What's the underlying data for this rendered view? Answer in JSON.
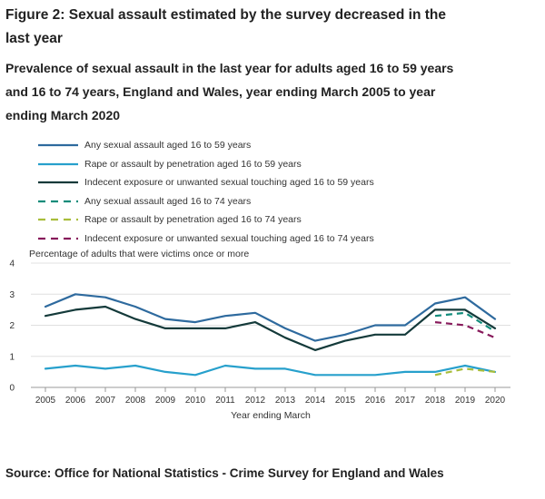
{
  "figure": {
    "title": "Figure 2: Sexual assault estimated by the survey decreased in the last year",
    "subtitle": "Prevalence of sexual assault in the last year for adults aged 16 to 59 years and 16 to 74 years, England and Wales, year ending March 2005 to year ending March 2020",
    "source": "Source: Office for National Statistics - Crime Survey for England and Wales"
  },
  "chart_data": {
    "type": "line",
    "ylabel": "Percentage of adults that were victims once or more",
    "xlabel": "Year ending March",
    "ylim": [
      0,
      4
    ],
    "y_ticks": [
      "0",
      "1",
      "2",
      "3",
      "4"
    ],
    "categories": [
      "2005",
      "2006",
      "2007",
      "2008",
      "2009",
      "2010",
      "2011",
      "2012",
      "2013",
      "2014",
      "2015",
      "2016",
      "2017",
      "2018",
      "2019",
      "2020"
    ],
    "grid": true,
    "legend_position": "top",
    "series": [
      {
        "name": "Any sexual assault aged 16 to 59 years",
        "color": "#2e6a9e",
        "dashed": false,
        "values": [
          2.6,
          3.0,
          2.9,
          2.6,
          2.2,
          2.1,
          2.3,
          2.4,
          1.9,
          1.5,
          1.7,
          2.0,
          2.0,
          2.7,
          2.9,
          2.2
        ]
      },
      {
        "name": "Rape or assault by penetration aged 16 to 59 years",
        "color": "#27a0cc",
        "dashed": false,
        "values": [
          0.6,
          0.7,
          0.6,
          0.7,
          0.5,
          0.4,
          0.7,
          0.6,
          0.6,
          0.4,
          0.4,
          0.4,
          0.5,
          0.5,
          0.7,
          0.5
        ]
      },
      {
        "name": "Indecent exposure or unwanted sexual touching aged 16 to 59 years",
        "color": "#143a3a",
        "dashed": false,
        "values": [
          2.3,
          2.5,
          2.6,
          2.2,
          1.9,
          1.9,
          1.9,
          2.1,
          1.6,
          1.2,
          1.5,
          1.7,
          1.7,
          2.5,
          2.5,
          1.9
        ]
      },
      {
        "name": "Any sexual assault aged 16 to 74 years",
        "color": "#118c7b",
        "dashed": true,
        "values": [
          null,
          null,
          null,
          null,
          null,
          null,
          null,
          null,
          null,
          null,
          null,
          null,
          null,
          2.3,
          2.4,
          1.8
        ]
      },
      {
        "name": "Rape or assault by penetration aged 16 to 74 years",
        "color": "#a8bd3a",
        "dashed": true,
        "values": [
          null,
          null,
          null,
          null,
          null,
          null,
          null,
          null,
          null,
          null,
          null,
          null,
          null,
          0.4,
          0.6,
          0.5
        ]
      },
      {
        "name": "Indecent exposure or unwanted sexual touching aged 16 to 74 years",
        "color": "#871a5b",
        "dashed": true,
        "values": [
          null,
          null,
          null,
          null,
          null,
          null,
          null,
          null,
          null,
          null,
          null,
          null,
          null,
          2.1,
          2.0,
          1.6
        ]
      }
    ]
  }
}
